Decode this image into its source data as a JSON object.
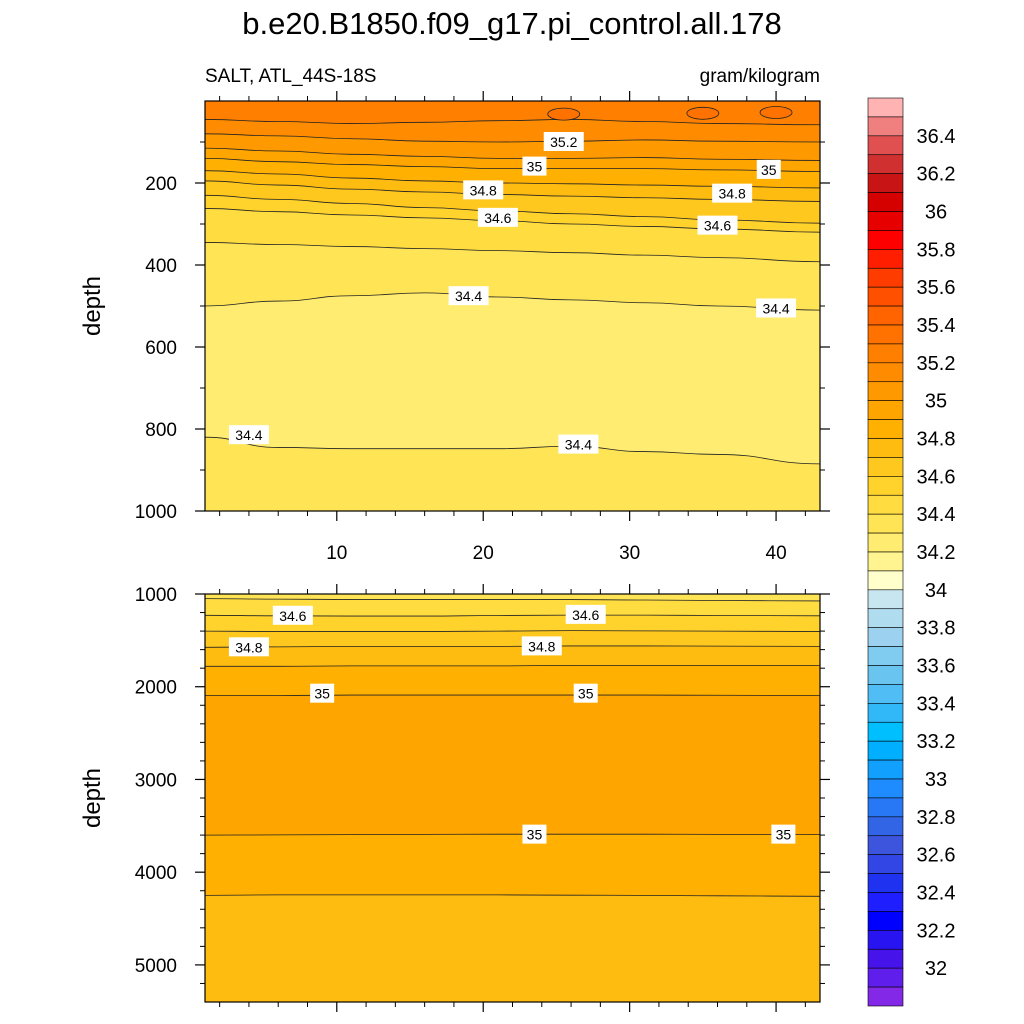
{
  "chart_data": [
    {
      "type": "contour",
      "title": "b.e20.B1850.f09_g17.pi_control.all.178",
      "left_string": "SALT, ATL_44S-18S",
      "right_string": "gram/kilogram",
      "ylabel": "depth",
      "xlim": [
        1,
        43
      ],
      "ylim": [
        1000,
        0
      ],
      "xticks": [
        10,
        20,
        30,
        40
      ],
      "yticks": [
        200,
        400,
        600,
        800,
        1000
      ],
      "fill_bands": [
        35.3,
        35.2,
        35.1,
        35.0,
        34.9,
        34.8,
        34.7,
        34.6,
        34.5,
        34.4,
        34.3,
        34.4
      ],
      "contour_labels": [
        {
          "text": "35.2",
          "x": 25.5,
          "y": 100
        },
        {
          "text": "35",
          "x": 23.5,
          "y": 160
        },
        {
          "text": "35",
          "x": 39.5,
          "y": 168
        },
        {
          "text": "34.8",
          "x": 20,
          "y": 218
        },
        {
          "text": "34.8",
          "x": 37,
          "y": 226
        },
        {
          "text": "34.6",
          "x": 21,
          "y": 285
        },
        {
          "text": "34.6",
          "x": 36,
          "y": 304
        },
        {
          "text": "34.4",
          "x": 19,
          "y": 476
        },
        {
          "text": "34.4",
          "x": 40,
          "y": 506
        },
        {
          "text": "34.4",
          "x": 4,
          "y": 815
        },
        {
          "text": "34.4",
          "x": 26.5,
          "y": 838
        }
      ]
    },
    {
      "type": "contour",
      "ylabel": "depth",
      "xlim": [
        1,
        43
      ],
      "ylim": [
        5400,
        1000
      ],
      "yticks": [
        1000,
        2000,
        3000,
        4000,
        5000
      ],
      "contour_labels": [
        {
          "text": "34.6",
          "x": 7,
          "y": 1235
        },
        {
          "text": "34.6",
          "x": 27,
          "y": 1225
        },
        {
          "text": "34.8",
          "x": 4,
          "y": 1575
        },
        {
          "text": "34.8",
          "x": 24,
          "y": 1565
        },
        {
          "text": "35",
          "x": 9,
          "y": 2075
        },
        {
          "text": "35",
          "x": 27,
          "y": 2075
        },
        {
          "text": "35",
          "x": 23.5,
          "y": 3595
        },
        {
          "text": "35",
          "x": 40.5,
          "y": 3595
        }
      ]
    }
  ],
  "colorbar": {
    "labels": [
      "36.4",
      "36.2",
      "36",
      "35.8",
      "35.6",
      "35.4",
      "35.2",
      "35",
      "34.8",
      "34.6",
      "34.4",
      "34.2",
      "34",
      "33.8",
      "33.6",
      "33.4",
      "33.2",
      "33",
      "32.8",
      "32.6",
      "32.4",
      "32.2",
      "32"
    ],
    "colors": [
      "#FFB3B3",
      "#F08080",
      "#E05050",
      "#D03030",
      "#C81414",
      "#D50000",
      "#E60000",
      "#FF0000",
      "#FF1E00",
      "#FF3C00",
      "#FF5000",
      "#FF6400",
      "#FF7200",
      "#FF8000",
      "#FF8C00",
      "#FF9900",
      "#FFA500",
      "#FFB000",
      "#FFBC10",
      "#FFC81E",
      "#FFD22C",
      "#FFDC40",
      "#FFE456",
      "#FFEC70",
      "#FFF490",
      "#FFFFCC",
      "#C8E6F0",
      "#B0DCF0",
      "#9CD2F0",
      "#80CCF0",
      "#6AC4F0",
      "#50BEF5",
      "#30B8F8",
      "#00BFFF",
      "#00AFFF",
      "#12A0FF",
      "#1E8CFF",
      "#2878F5",
      "#3264E6",
      "#3C55DC",
      "#3246E6",
      "#1E32F0",
      "#1E1EFF",
      "#0000FF",
      "#2814F0",
      "#4614EB",
      "#5F1EEB",
      "#8228E6"
    ]
  }
}
